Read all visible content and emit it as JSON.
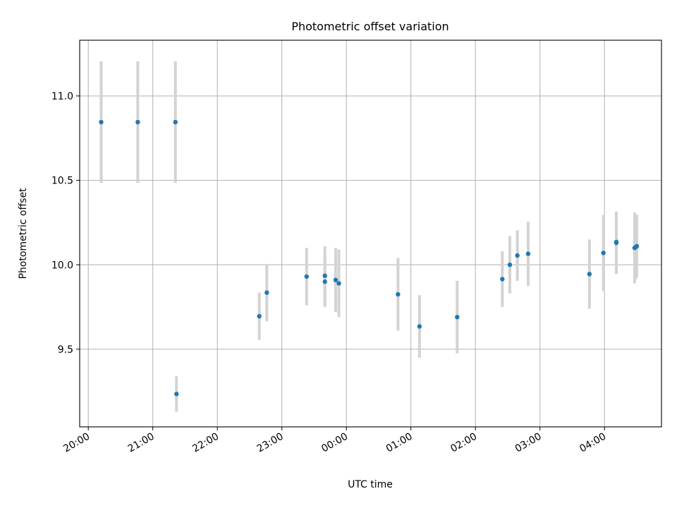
{
  "chart_data": {
    "type": "scatter",
    "title": "Photometric offset variation",
    "xlabel": "UTC time",
    "ylabel": "Photometric offset",
    "x_tick_labels": [
      "20:00",
      "21:00",
      "22:00",
      "23:00",
      "00:00",
      "01:00",
      "02:00",
      "03:00",
      "04:00"
    ],
    "y_tick_labels": [
      "9.5",
      "10.0",
      "10.5",
      "11.0"
    ],
    "y_ticks": [
      9.5,
      10.0,
      10.5,
      11.0
    ],
    "x_tick_times": [
      "20:00",
      "21:00",
      "22:00",
      "23:00",
      "00:00",
      "01:00",
      "02:00",
      "03:00",
      "04:00"
    ],
    "xlim": [
      "19:52",
      "04:53"
    ],
    "ylim": [
      9.04,
      11.33
    ],
    "grid": true,
    "colors": {
      "points": "#1f77b4",
      "error_bars": "#d3d3d3",
      "grid": "#b0b0b0"
    },
    "points": [
      {
        "time": "20:12",
        "y": 10.845,
        "err": 0.36
      },
      {
        "time": "20:46",
        "y": 10.845,
        "err": 0.36
      },
      {
        "time": "21:21",
        "y": 10.845,
        "err": 0.36
      },
      {
        "time": "21:22",
        "y": 9.235,
        "err": 0.105
      },
      {
        "time": "22:39",
        "y": 9.695,
        "err": 0.14
      },
      {
        "time": "22:46",
        "y": 9.835,
        "err": 0.17
      },
      {
        "time": "23:23",
        "y": 9.93,
        "err": 0.17
      },
      {
        "time": "23:40",
        "y": 9.935,
        "err": 0.175
      },
      {
        "time": "23:40",
        "y": 9.9,
        "err": 0.15
      },
      {
        "time": "23:50",
        "y": 9.91,
        "err": 0.19
      },
      {
        "time": "23:53",
        "y": 9.89,
        "err": 0.2
      },
      {
        "time": "00:48",
        "y": 9.825,
        "err": 0.215
      },
      {
        "time": "01:08",
        "y": 9.635,
        "err": 0.185
      },
      {
        "time": "01:43",
        "y": 9.69,
        "err": 0.215
      },
      {
        "time": "02:25",
        "y": 9.915,
        "err": 0.165
      },
      {
        "time": "02:32",
        "y": 10.0,
        "err": 0.17
      },
      {
        "time": "02:39",
        "y": 10.055,
        "err": 0.15
      },
      {
        "time": "02:49",
        "y": 10.065,
        "err": 0.19
      },
      {
        "time": "03:46",
        "y": 9.945,
        "err": 0.205
      },
      {
        "time": "03:59",
        "y": 10.07,
        "err": 0.225
      },
      {
        "time": "04:11",
        "y": 10.13,
        "err": 0.185
      },
      {
        "time": "04:11",
        "y": 10.135,
        "err": 0.18
      },
      {
        "time": "04:28",
        "y": 10.1,
        "err": 0.21
      },
      {
        "time": "04:29",
        "y": 10.105,
        "err": 0.19
      },
      {
        "time": "04:30",
        "y": 10.11,
        "err": 0.185
      }
    ]
  }
}
